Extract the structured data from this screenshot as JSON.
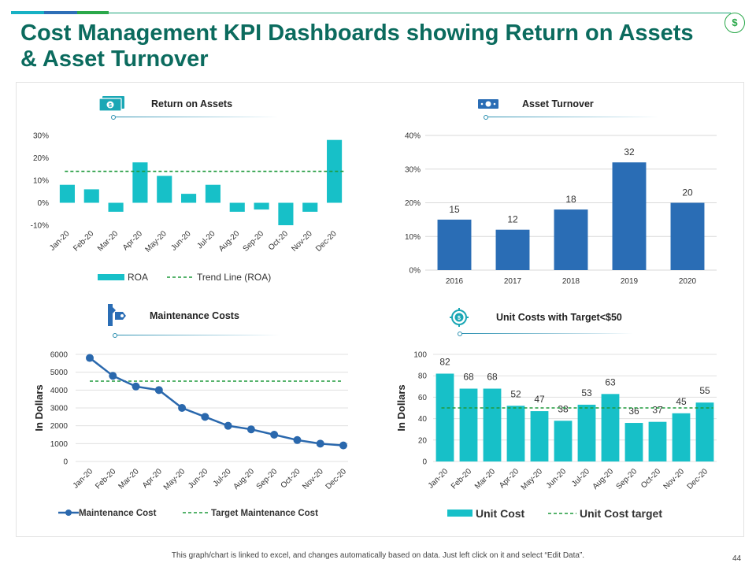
{
  "theme": {
    "teal": "#1aa57a",
    "blue": "#2e6fb7",
    "green": "#2aa84a",
    "cyan": "#17c0c8",
    "darkblue": "#2a6db5",
    "trend": "#1f9a3c"
  },
  "header": {
    "title": "Cost Management KPI Dashboards showing Return on Assets & Asset Turnover",
    "icon_symbol": "$"
  },
  "footer": {
    "note": "This graph/chart is linked to excel, and changes automatically based on data. Just left click on it and select “Edit Data”.",
    "page_number": "44"
  },
  "chart_data": [
    {
      "id": "roa",
      "type": "bar",
      "title": "Return on Assets",
      "categories": [
        "Jan-20",
        "Feb-20",
        "Mar-20",
        "Apr-20",
        "May-20",
        "Jun-20",
        "Jul-20",
        "Aug-20",
        "Sep-20",
        "Oct-20",
        "Nov-20",
        "Dec-20"
      ],
      "series": [
        {
          "name": "ROA",
          "values": [
            8,
            6,
            -4,
            18,
            12,
            4,
            8,
            -4,
            -3,
            -10,
            -4,
            28
          ]
        },
        {
          "name": "Trend Line (ROA)",
          "type": "line",
          "values": [
            14,
            14,
            14,
            14,
            14,
            14,
            14,
            14,
            14,
            14,
            14,
            14
          ]
        }
      ],
      "ylim": [
        -10,
        30
      ],
      "yticks": [
        "-10%",
        "0%",
        "10%",
        "20%",
        "30%"
      ],
      "xlabel": "",
      "ylabel": ""
    },
    {
      "id": "turnover",
      "type": "bar",
      "title": "Asset Turnover",
      "categories": [
        "2016",
        "2017",
        "2018",
        "2019",
        "2020"
      ],
      "values": [
        15,
        12,
        18,
        32,
        20
      ],
      "data_labels": [
        "15",
        "12",
        "18",
        "32",
        "20"
      ],
      "ylim": [
        0,
        40
      ],
      "yticks": [
        "0%",
        "10%",
        "20%",
        "30%",
        "40%"
      ],
      "grid": true,
      "xlabel": "",
      "ylabel": ""
    },
    {
      "id": "maintenance",
      "type": "line",
      "title": "Maintenance Costs",
      "categories": [
        "Jan-20",
        "Feb-20",
        "Mar-20",
        "Apr-20",
        "May-20",
        "Jun-20",
        "Jul-20",
        "Aug-20",
        "Sep-20",
        "Oct-20",
        "Nov-20",
        "Dec-20"
      ],
      "series": [
        {
          "name": "Maintenance Cost",
          "values": [
            5800,
            4800,
            4200,
            4000,
            3000,
            2500,
            2000,
            1800,
            1500,
            1200,
            1000,
            900
          ]
        },
        {
          "name": "Target Maintenance Cost",
          "type": "dashed",
          "values": [
            4500,
            4500,
            4500,
            4500,
            4500,
            4500,
            4500,
            4500,
            4500,
            4500,
            4500,
            4500
          ]
        }
      ],
      "ylim": [
        0,
        6000
      ],
      "yticks": [
        "0",
        "1000",
        "2000",
        "3000",
        "4000",
        "5000",
        "6000"
      ],
      "grid": true,
      "xlabel": "",
      "ylabel": "In Dollars"
    },
    {
      "id": "unitcost",
      "type": "bar",
      "title": "Unit Costs with Target<$50",
      "categories": [
        "Jan-20",
        "Feb-20",
        "Mar-20",
        "Apr-20",
        "May-20",
        "Jun-20",
        "Jul-20",
        "Aug-20",
        "Sep-20",
        "Oct-20",
        "Nov-20",
        "Dec-20"
      ],
      "series": [
        {
          "name": "Unit Cost",
          "values": [
            82,
            68,
            68,
            52,
            47,
            38,
            53,
            63,
            36,
            37,
            45,
            55
          ]
        },
        {
          "name": "Unit Cost target",
          "type": "dashed",
          "values": [
            50,
            50,
            50,
            50,
            50,
            50,
            50,
            50,
            50,
            50,
            50,
            50
          ]
        }
      ],
      "data_labels": [
        "82",
        "68",
        "68",
        "52",
        "47",
        "38",
        "53",
        "63",
        "36",
        "37",
        "45",
        "55"
      ],
      "ylim": [
        0,
        100
      ],
      "yticks": [
        "0",
        "20",
        "40",
        "60",
        "80",
        "100"
      ],
      "grid": true,
      "xlabel": "",
      "ylabel": "In Dollars"
    }
  ]
}
